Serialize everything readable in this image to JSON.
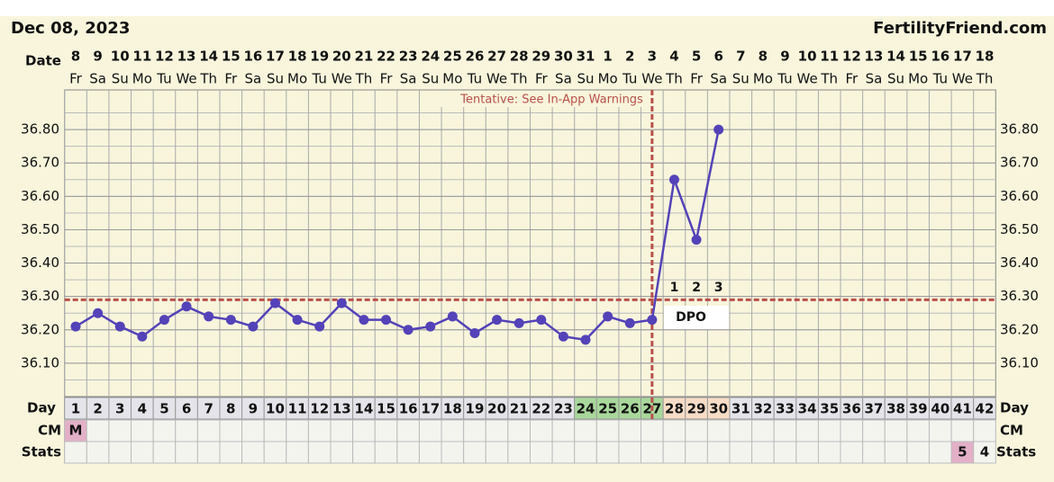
{
  "header": {
    "date": "Dec 08, 2023",
    "site": "FertilityFriend.com"
  },
  "chart_data": {
    "type": "line",
    "date_label": "Date",
    "dates": [
      "8",
      "9",
      "10",
      "11",
      "12",
      "13",
      "14",
      "15",
      "16",
      "17",
      "18",
      "19",
      "20",
      "21",
      "22",
      "23",
      "24",
      "25",
      "26",
      "27",
      "28",
      "29",
      "30",
      "31",
      "1",
      "2",
      "3",
      "4",
      "5",
      "6",
      "7",
      "8",
      "9",
      "10",
      "11",
      "12",
      "13",
      "14",
      "15",
      "16",
      "17",
      "18"
    ],
    "weekdays": [
      "Fr",
      "Sa",
      "Su",
      "Mo",
      "Tu",
      "We",
      "Th",
      "Fr",
      "Sa",
      "Su",
      "Mo",
      "Tu",
      "We",
      "Th",
      "Fr",
      "Sa",
      "Su",
      "Mo",
      "Tu",
      "We",
      "Th",
      "Fr",
      "Sa",
      "Su",
      "Mo",
      "Tu",
      "We",
      "Th",
      "Fr",
      "Sa",
      "Su",
      "Mo",
      "Tu",
      "We",
      "Th",
      "Fr",
      "Sa",
      "Su",
      "Mo",
      "Tu",
      "We",
      "Th"
    ],
    "day_label": "Day",
    "categories": [
      1,
      2,
      3,
      4,
      5,
      6,
      7,
      8,
      9,
      10,
      11,
      12,
      13,
      14,
      15,
      16,
      17,
      18,
      19,
      20,
      21,
      22,
      23,
      24,
      25,
      26,
      27,
      28,
      29,
      30,
      31,
      32,
      33,
      34,
      35,
      36,
      37,
      38,
      39,
      40,
      41,
      42
    ],
    "day_colors": [
      null,
      null,
      null,
      null,
      null,
      null,
      null,
      null,
      null,
      null,
      null,
      null,
      null,
      null,
      null,
      null,
      null,
      null,
      null,
      null,
      null,
      null,
      null,
      "#a9d89b",
      "#a9d89b",
      "#a9d89b",
      "#a9d89b",
      "#f7dcc6",
      "#f7dcc6",
      "#f7dcc6",
      null,
      null,
      null,
      null,
      null,
      null,
      null,
      null,
      null,
      null,
      null,
      null
    ],
    "series": [
      {
        "name": "Temperature",
        "color": "#5442b8",
        "values": [
          36.21,
          36.25,
          36.21,
          36.18,
          36.23,
          36.27,
          36.24,
          36.23,
          36.21,
          36.28,
          36.23,
          36.21,
          36.28,
          36.23,
          36.23,
          36.2,
          36.21,
          36.24,
          36.19,
          36.23,
          36.22,
          36.23,
          36.18,
          36.17,
          36.24,
          36.22,
          36.23,
          36.65,
          36.47,
          36.8,
          null,
          null,
          null,
          null,
          null,
          null,
          null,
          null,
          null,
          null,
          null,
          null
        ]
      }
    ],
    "ylim": [
      36.0,
      36.9
    ],
    "yticks": [
      {
        "value": 36.1,
        "label": "36.10"
      },
      {
        "value": 36.2,
        "label": "36.20"
      },
      {
        "value": 36.3,
        "label": "36.30"
      },
      {
        "value": 36.4,
        "label": "36.40"
      },
      {
        "value": 36.5,
        "label": "36.50"
      },
      {
        "value": 36.6,
        "label": "36.60"
      },
      {
        "value": 36.7,
        "label": "36.70"
      },
      {
        "value": 36.8,
        "label": "36.80"
      }
    ],
    "cover_line": 36.29,
    "ovulation_day": 27,
    "line_color": "#b8504a",
    "annotation": "Tentative: See In-App Warnings",
    "dpo": [
      1,
      2,
      3
    ],
    "dpo_label": "DPO",
    "cm_label": "CM",
    "cm": [
      "M",
      null,
      null,
      null,
      null,
      null,
      null,
      null,
      null,
      null,
      null,
      null,
      null,
      null,
      null,
      null,
      null,
      null,
      null,
      null,
      null,
      null,
      null,
      null,
      null,
      null,
      null,
      null,
      null,
      null,
      null,
      null,
      null,
      null,
      null,
      null,
      null,
      null,
      null,
      null,
      null,
      null
    ],
    "stats_label": "Stats",
    "stats": [
      null,
      null,
      null,
      null,
      null,
      null,
      null,
      null,
      null,
      null,
      null,
      null,
      null,
      null,
      null,
      null,
      null,
      null,
      null,
      null,
      null,
      null,
      null,
      null,
      null,
      null,
      null,
      null,
      null,
      null,
      null,
      null,
      null,
      null,
      null,
      null,
      null,
      null,
      null,
      null,
      5,
      4
    ],
    "highlight_color": "#e3b0c8"
  }
}
